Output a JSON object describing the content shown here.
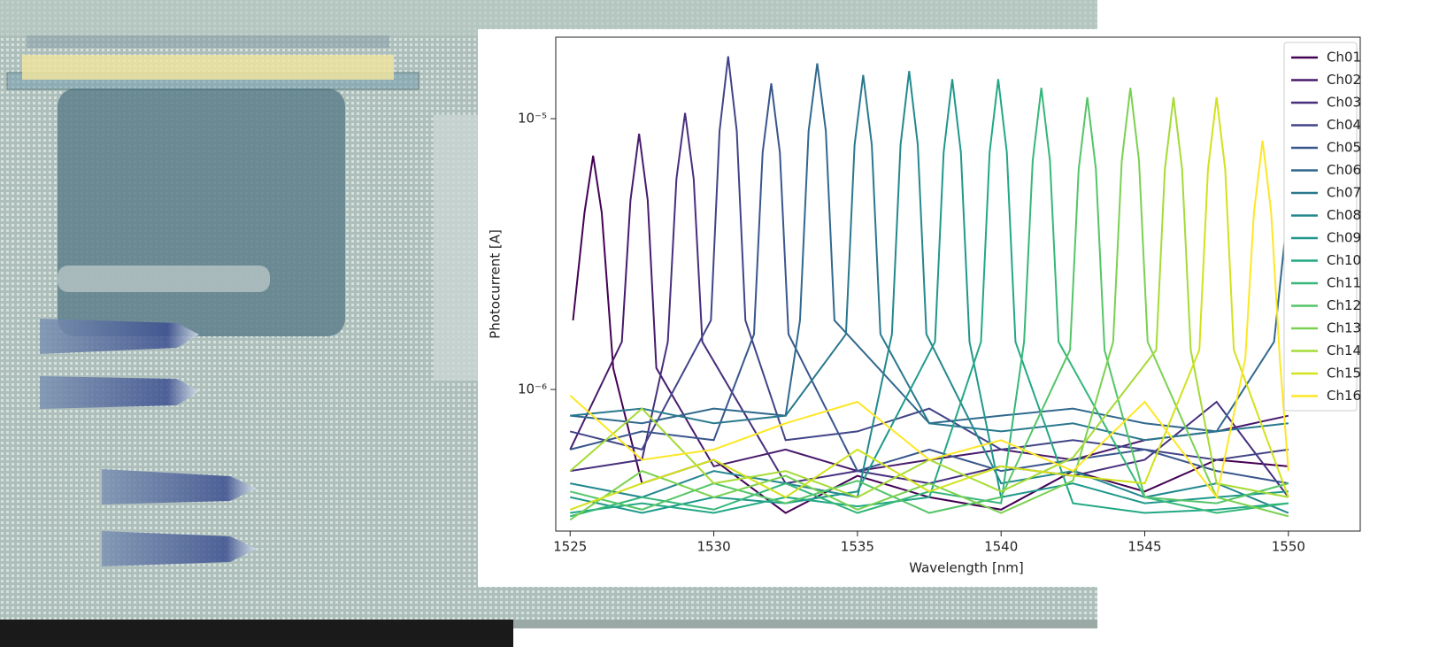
{
  "chart_data": {
    "type": "line",
    "xlabel": "Wavelength [nm]",
    "ylabel": "Photocurrent [A]",
    "xlim": [
      1524.5,
      1552.5
    ],
    "xticks": [
      1525,
      1530,
      1535,
      1540,
      1545,
      1550
    ],
    "ylim": [
      3e-07,
      2e-05
    ],
    "yscale": "log",
    "yticks": [
      {
        "value": 1e-06,
        "label": "10⁻⁶"
      },
      {
        "value": 1e-05,
        "label": "10⁻⁵"
      }
    ],
    "legend": "upper right",
    "series": [
      {
        "name": "Ch01",
        "color": "#440154",
        "x": [
          1525.1,
          1525.5,
          1525.8,
          1526.1,
          1526.5,
          1527.5,
          1530,
          1532.5,
          1535,
          1537.5,
          1540,
          1542.5,
          1545,
          1547.5,
          1550
        ],
        "values": [
          1.8e-06,
          4.5e-06,
          7.3e-06,
          4.5e-06,
          1.2e-06,
          4.5e-07,
          5.5e-07,
          3.5e-07,
          4.8e-07,
          4e-07,
          3.6e-07,
          5e-07,
          4.2e-07,
          5.5e-07,
          5.2e-07
        ]
      },
      {
        "name": "Ch02",
        "color": "#481a6c",
        "x": [
          1525,
          1526.8,
          1527.1,
          1527.4,
          1527.7,
          1528,
          1530,
          1532.5,
          1535,
          1537.5,
          1540,
          1542.5,
          1545,
          1547.5,
          1550
        ],
        "values": [
          6e-07,
          1.5e-06,
          5e-06,
          8.8e-06,
          5e-06,
          1.2e-06,
          5.2e-07,
          6e-07,
          5e-07,
          5.5e-07,
          6e-07,
          5.5e-07,
          6.5e-07,
          7e-07,
          8e-07
        ]
      },
      {
        "name": "Ch03",
        "color": "#472f7d",
        "x": [
          1525,
          1527.5,
          1528.4,
          1528.7,
          1529,
          1529.3,
          1529.6,
          1532.5,
          1535,
          1537.5,
          1540,
          1542.5,
          1545,
          1547.5,
          1550
        ],
        "values": [
          5e-07,
          5.5e-07,
          1.5e-06,
          6e-06,
          1.05e-05,
          6e-06,
          1.5e-06,
          4.5e-07,
          5e-07,
          4.5e-07,
          5.2e-07,
          4.8e-07,
          5.5e-07,
          9e-07,
          4e-07
        ]
      },
      {
        "name": "Ch04",
        "color": "#414487",
        "x": [
          1525,
          1527.5,
          1529.9,
          1530.2,
          1530.5,
          1530.8,
          1531.1,
          1532.5,
          1535,
          1537.5,
          1540,
          1542.5,
          1545,
          1547.5,
          1550
        ],
        "values": [
          7e-07,
          6e-07,
          1.8e-06,
          9e-06,
          1.7e-05,
          9e-06,
          1.8e-06,
          6.5e-07,
          7e-07,
          8.5e-07,
          6e-07,
          6.5e-07,
          6e-07,
          5.5e-07,
          6e-07
        ]
      },
      {
        "name": "Ch05",
        "color": "#39568c",
        "x": [
          1525,
          1527.5,
          1530,
          1531.4,
          1531.7,
          1532,
          1532.3,
          1532.6,
          1535,
          1537.5,
          1540,
          1542.5,
          1545,
          1547.5,
          1550
        ],
        "values": [
          6e-07,
          7e-07,
          6.5e-07,
          1.6e-06,
          7.5e-06,
          1.35e-05,
          7.5e-06,
          1.6e-06,
          5e-07,
          6e-07,
          5e-07,
          5.5e-07,
          6e-07,
          5e-07,
          4.5e-07
        ]
      },
      {
        "name": "Ch06",
        "color": "#31688e",
        "x": [
          1525,
          1527.5,
          1530,
          1532.5,
          1533,
          1533.3,
          1533.6,
          1533.9,
          1534.2,
          1537.5,
          1540,
          1542.5,
          1545,
          1547.5,
          1549.5,
          1550
        ],
        "values": [
          8e-07,
          7.5e-07,
          8.5e-07,
          8e-07,
          1.8e-06,
          9e-06,
          1.6e-05,
          9e-06,
          1.8e-06,
          7.5e-07,
          8e-07,
          8.5e-07,
          7.5e-07,
          7e-07,
          1.5e-06,
          4.8e-06
        ]
      },
      {
        "name": "Ch07",
        "color": "#2a788e",
        "x": [
          1525,
          1527.5,
          1530,
          1532.5,
          1534.6,
          1534.9,
          1535.2,
          1535.5,
          1535.8,
          1537.5,
          1540,
          1542.5,
          1545,
          1547.5,
          1550
        ],
        "values": [
          8e-07,
          8.5e-07,
          7.5e-07,
          8e-07,
          1.6e-06,
          8e-06,
          1.45e-05,
          8e-06,
          1.6e-06,
          7.5e-07,
          7e-07,
          7.5e-07,
          6.5e-07,
          7e-07,
          7.5e-07
        ]
      },
      {
        "name": "Ch08",
        "color": "#23888e",
        "x": [
          1525,
          1527.5,
          1530,
          1532.5,
          1535,
          1536.2,
          1536.5,
          1536.8,
          1537.1,
          1537.4,
          1540,
          1542.5,
          1545,
          1547.5,
          1550
        ],
        "values": [
          4.5e-07,
          4e-07,
          5e-07,
          4.5e-07,
          4e-07,
          1.6e-06,
          8e-06,
          1.5e-05,
          8e-06,
          1.6e-06,
          4.5e-07,
          5e-07,
          4e-07,
          4.5e-07,
          3.5e-07
        ]
      },
      {
        "name": "Ch09",
        "color": "#1f988b",
        "x": [
          1525,
          1527.5,
          1530,
          1532.5,
          1535,
          1537.7,
          1538,
          1538.3,
          1538.6,
          1538.9,
          1540,
          1542.5,
          1545,
          1547.5,
          1550
        ],
        "values": [
          4e-07,
          3.5e-07,
          4e-07,
          3.8e-07,
          4.2e-07,
          1.5e-06,
          7.5e-06,
          1.4e-05,
          7.5e-06,
          1.5e-06,
          4e-07,
          4.5e-07,
          3.8e-07,
          4e-07,
          4.2e-07
        ]
      },
      {
        "name": "Ch10",
        "color": "#22a884",
        "x": [
          1525,
          1527.5,
          1530,
          1532.5,
          1535,
          1537.5,
          1539.3,
          1539.6,
          1539.9,
          1540.2,
          1540.5,
          1542.5,
          1545,
          1547.5,
          1550
        ],
        "values": [
          3.5e-07,
          3.8e-07,
          3.5e-07,
          4e-07,
          3.7e-07,
          4e-07,
          1.5e-06,
          7.5e-06,
          1.4e-05,
          7.5e-06,
          1.5e-06,
          3.8e-07,
          3.5e-07,
          3.6e-07,
          3.8e-07
        ]
      },
      {
        "name": "Ch11",
        "color": "#35b779",
        "x": [
          1525,
          1527.5,
          1530,
          1532.5,
          1535,
          1537.5,
          1540,
          1540.8,
          1541.1,
          1541.4,
          1541.7,
          1542,
          1545,
          1547.5,
          1550
        ],
        "values": [
          3.4e-07,
          4e-07,
          3.6e-07,
          4.5e-07,
          3.5e-07,
          4.2e-07,
          3.8e-07,
          1.5e-06,
          7e-06,
          1.3e-05,
          7e-06,
          1.5e-06,
          4e-07,
          3.5e-07,
          3.8e-07
        ]
      },
      {
        "name": "Ch12",
        "color": "#54c568",
        "x": [
          1525,
          1527.5,
          1530,
          1532.5,
          1535,
          1537.5,
          1540,
          1542.4,
          1542.7,
          1543,
          1543.3,
          1543.6,
          1545,
          1547.5,
          1550
        ],
        "values": [
          4.2e-07,
          3.6e-07,
          4.5e-07,
          3.8e-07,
          4.6e-07,
          3.5e-07,
          4e-07,
          1.4e-06,
          6.5e-06,
          1.2e-05,
          6.5e-06,
          1.4e-06,
          4e-07,
          3.8e-07,
          4.5e-07
        ]
      },
      {
        "name": "Ch13",
        "color": "#7ad151",
        "x": [
          1525,
          1527.5,
          1530,
          1532.5,
          1535,
          1537.5,
          1540,
          1542.5,
          1543.9,
          1544.2,
          1544.5,
          1544.8,
          1545.1,
          1547.5,
          1550
        ],
        "values": [
          3.3e-07,
          5e-07,
          4e-07,
          4.8e-07,
          3.6e-07,
          4.5e-07,
          3.5e-07,
          4.6e-07,
          1.5e-06,
          7e-06,
          1.3e-05,
          7e-06,
          1.5e-06,
          4e-07,
          3.4e-07
        ]
      },
      {
        "name": "Ch14",
        "color": "#a5db36",
        "x": [
          1525,
          1527.5,
          1530,
          1532.5,
          1535,
          1537.5,
          1540,
          1542.5,
          1545.4,
          1545.7,
          1546,
          1546.3,
          1546.6,
          1547.5,
          1550
        ],
        "values": [
          5e-07,
          8.5e-07,
          4.5e-07,
          5e-07,
          4e-07,
          5.5e-07,
          4.2e-07,
          5.6e-07,
          1.4e-06,
          6.5e-06,
          1.2e-05,
          6.5e-06,
          1.4e-06,
          4.5e-07,
          4e-07
        ]
      },
      {
        "name": "Ch15",
        "color": "#d2e21b",
        "x": [
          1525,
          1527.5,
          1530,
          1532.5,
          1535,
          1537.5,
          1540,
          1542.5,
          1545,
          1546.9,
          1547.2,
          1547.5,
          1547.8,
          1548.1,
          1550
        ],
        "values": [
          3.6e-07,
          4.5e-07,
          5.5e-07,
          4e-07,
          6e-07,
          4.2e-07,
          5.2e-07,
          4.8e-07,
          4.5e-07,
          1.4e-06,
          6.5e-06,
          1.2e-05,
          6.5e-06,
          1.4e-06,
          4e-07
        ]
      },
      {
        "name": "Ch16",
        "color": "#fde725",
        "x": [
          1525,
          1527.5,
          1530,
          1532.5,
          1535,
          1537.5,
          1540,
          1542.5,
          1545,
          1547.5,
          1548.5,
          1548.8,
          1549.1,
          1549.4,
          1549.7,
          1550
        ],
        "values": [
          9.5e-07,
          5.5e-07,
          6e-07,
          7.5e-07,
          9e-07,
          5.5e-07,
          6.5e-07,
          5e-07,
          9e-07,
          4e-07,
          1.3e-06,
          4.5e-06,
          8.3e-06,
          4.5e-06,
          1.3e-06,
          5e-07
        ]
      }
    ]
  }
}
